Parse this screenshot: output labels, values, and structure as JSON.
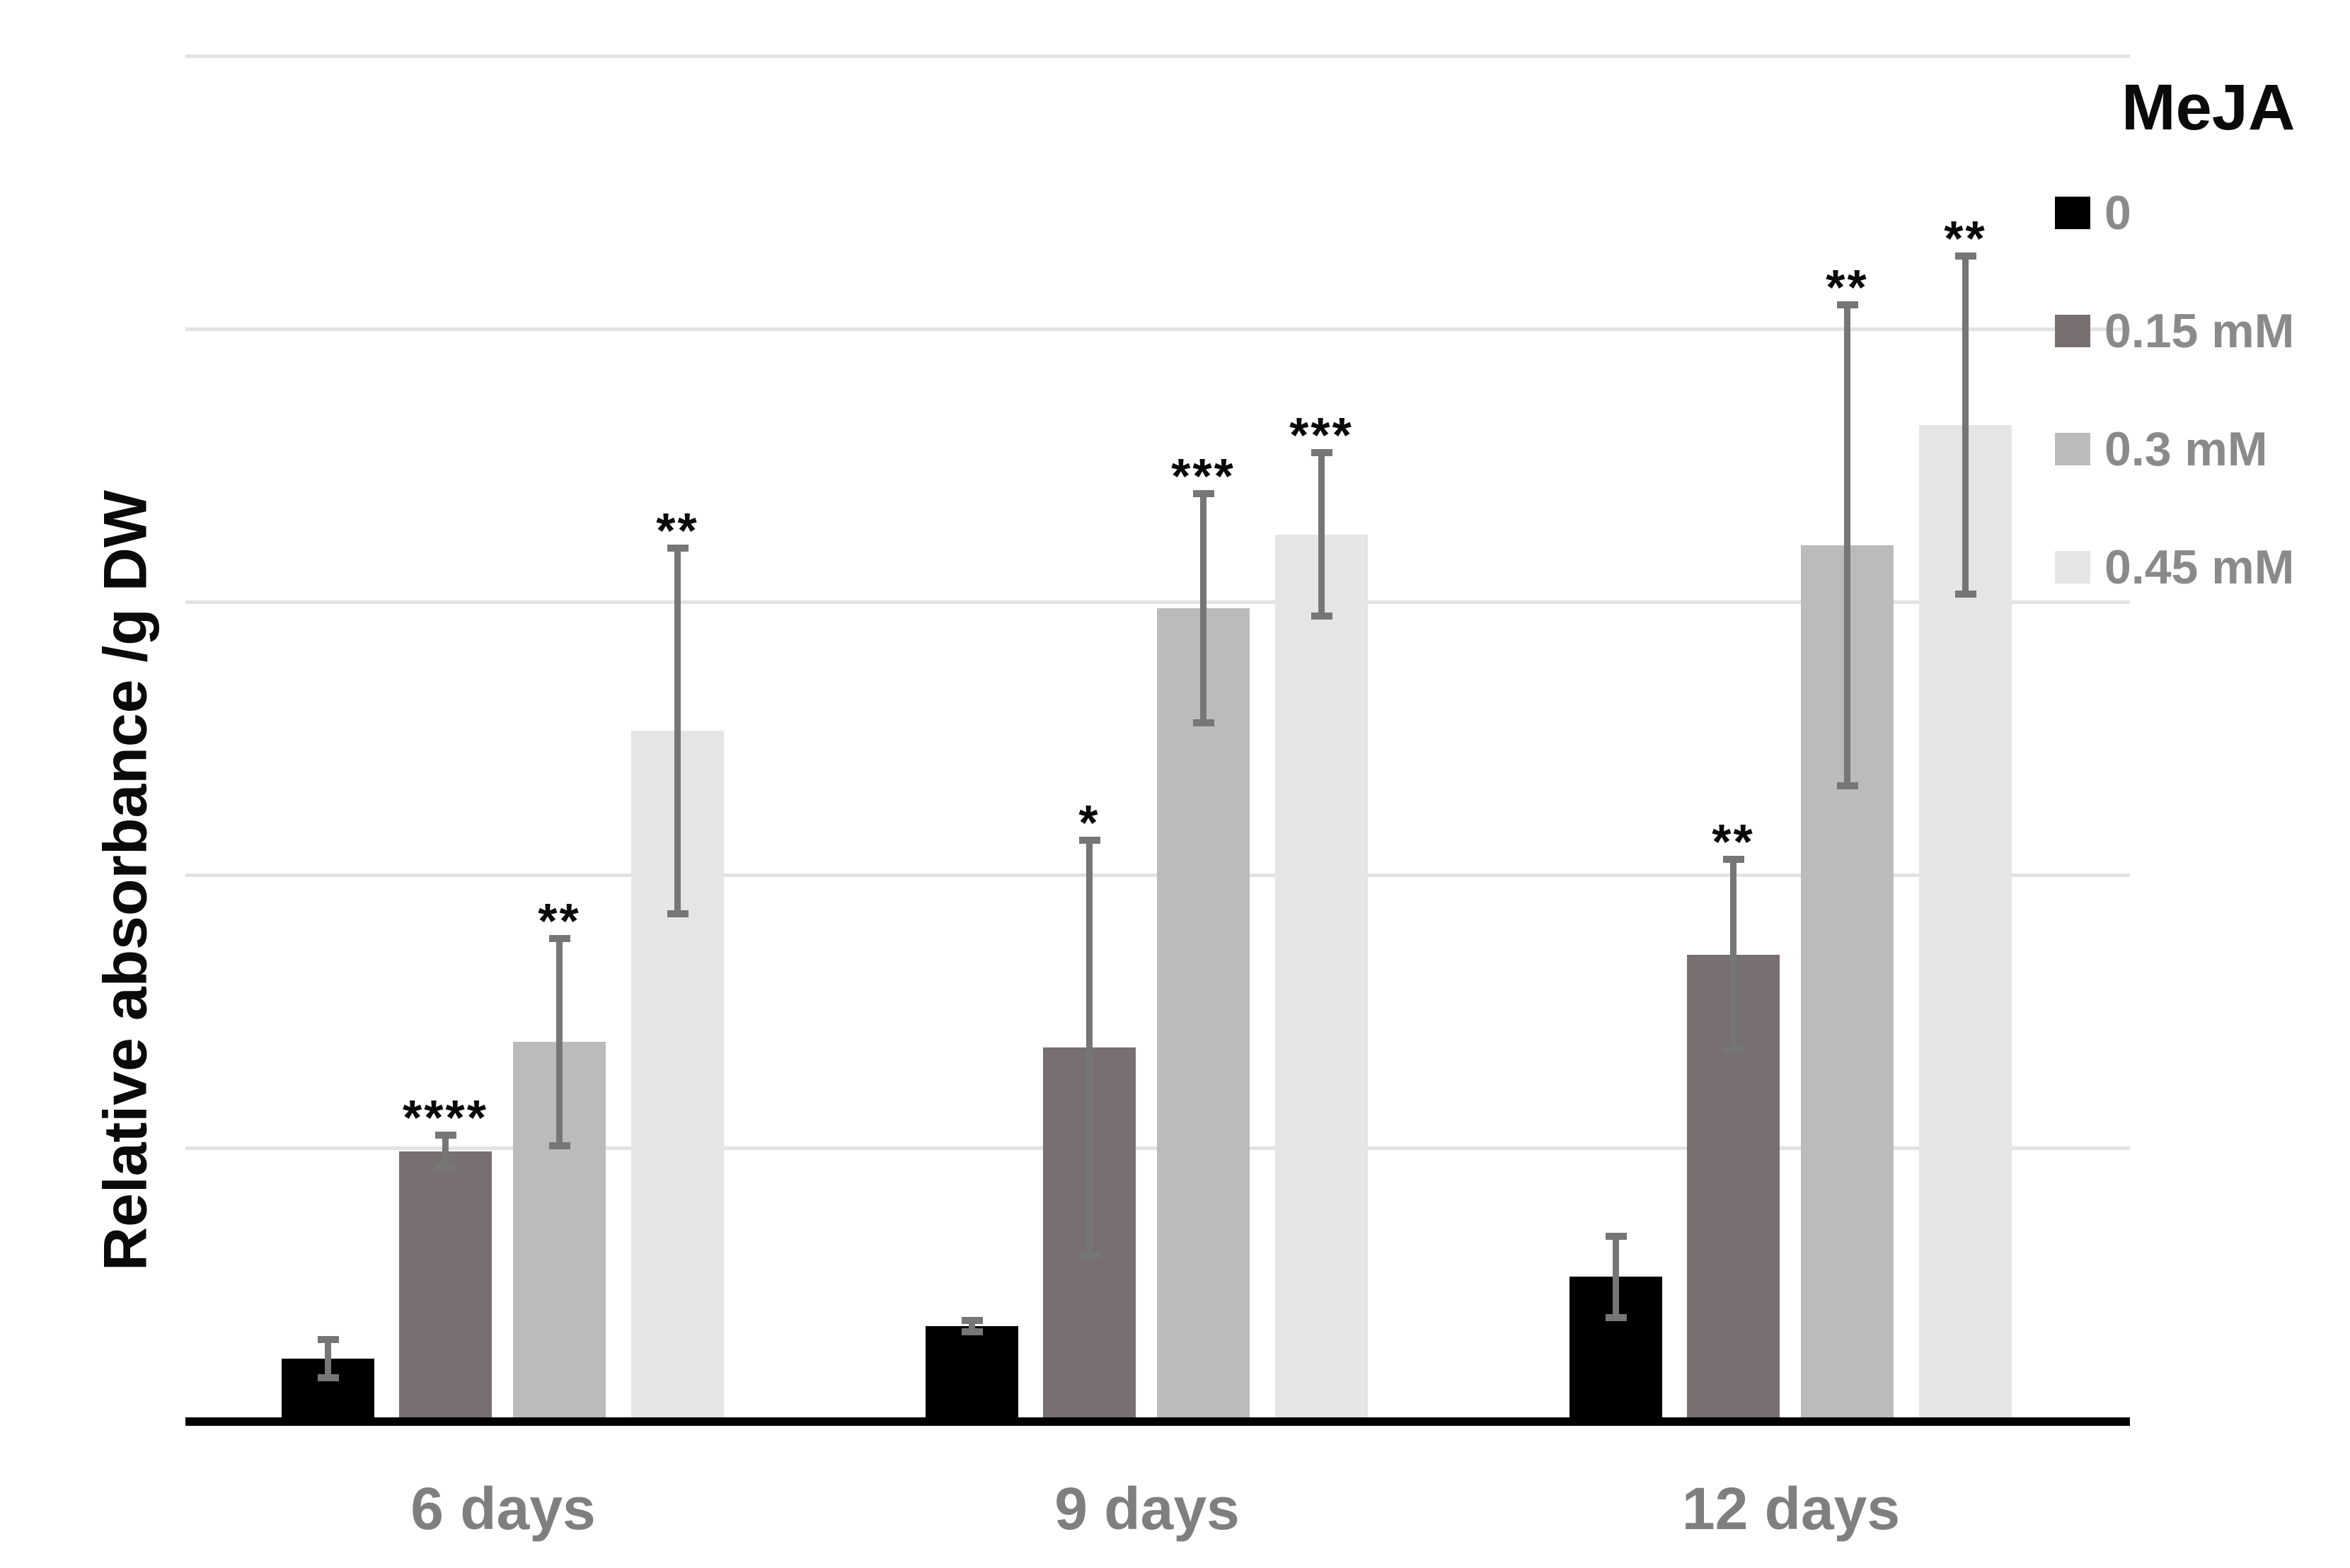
{
  "chart_data": {
    "type": "bar",
    "title": "",
    "ylabel": "Relative absorbance /g DW",
    "xlabel": "",
    "categories": [
      "6 days",
      "9 days",
      "12 days"
    ],
    "legend_title": "MeJA",
    "legend_position": "right",
    "grid": true,
    "ylim": [
      0,
      5
    ],
    "y_axis_tick_labels_visible": false,
    "gridline_values": [
      1,
      2,
      3,
      4,
      5
    ],
    "series": [
      {
        "name": "0",
        "color": "#000000",
        "values": [
          0.23,
          0.35,
          0.53
        ],
        "errors": [
          0.07,
          0.02,
          0.15
        ],
        "significance": [
          "",
          "",
          ""
        ]
      },
      {
        "name": "0.15 mM",
        "color": "#776F70",
        "values": [
          0.99,
          1.37,
          1.71
        ],
        "errors": [
          0.06,
          0.76,
          0.35
        ],
        "significance": [
          "****",
          "*",
          "**"
        ]
      },
      {
        "name": "0.3 mM",
        "color": "#BBBBBB",
        "values": [
          1.39,
          2.98,
          3.21
        ],
        "errors": [
          0.38,
          0.42,
          0.88
        ],
        "significance": [
          "**",
          "***",
          "**"
        ]
      },
      {
        "name": "0.45 mM",
        "color": "#E5E5E5",
        "values": [
          2.53,
          3.25,
          3.65
        ],
        "errors": [
          0.67,
          0.3,
          0.62
        ],
        "significance": [
          "**",
          "***",
          "**"
        ]
      }
    ],
    "colors": {
      "gridline": "#E2E2E2",
      "axis_line": "#000000",
      "error_bar": "#767676",
      "category_label": "#7F7F7F",
      "legend_text": "#8A8A8A",
      "significance_marks": "#0A0A0A"
    }
  }
}
